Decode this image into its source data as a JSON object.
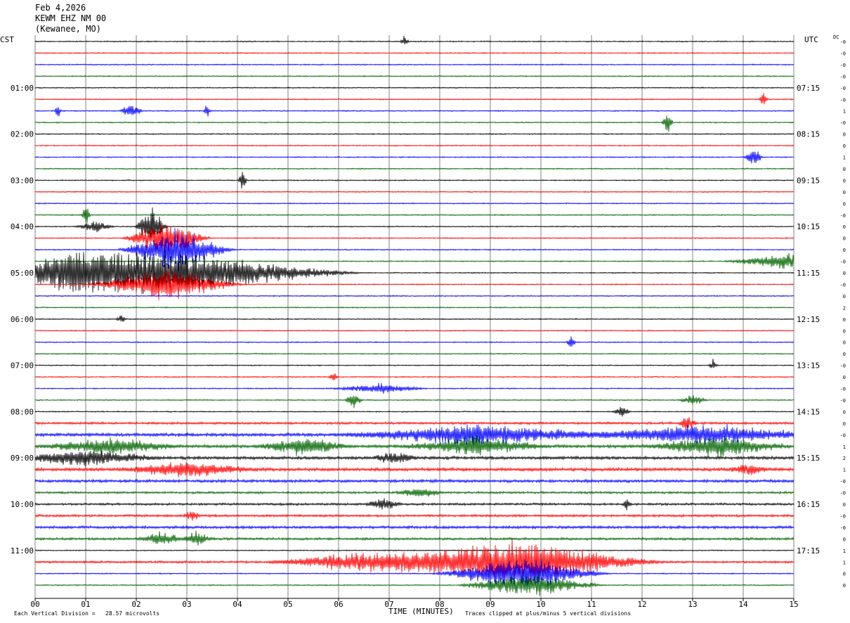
{
  "header": {
    "date": "Feb 4,2026",
    "station": "KEWM EHZ NM 00",
    "location": "(Kewanee, MO)"
  },
  "left_timezone": "CST",
  "right_timezone": "UTC",
  "dc_label": "DC",
  "footer": {
    "scale": "Each Vertical Division =   28.57 microvolts",
    "clip_note": "Traces clipped at plus/minus 5 vertical divisions",
    "x_title": "TIME (MINUTES)"
  },
  "colors": {
    "trace_cycle": [
      "#000000",
      "#ff0000",
      "#0000ff",
      "#006400"
    ],
    "grid": "#808080"
  },
  "chart_data": {
    "type": "line",
    "subtype": "helicorder",
    "xlabel": "TIME (MINUTES)",
    "xlim": [
      0,
      15
    ],
    "x_ticks": [
      "00",
      "01",
      "02",
      "03",
      "04",
      "05",
      "06",
      "07",
      "08",
      "09",
      "10",
      "11",
      "12",
      "13",
      "14",
      "15"
    ],
    "traces_per_hour": 4,
    "trace_count": 48,
    "left_hour_labels": [
      "01:00",
      "02:00",
      "03:00",
      "04:00",
      "05:00",
      "06:00",
      "07:00",
      "08:00",
      "09:00",
      "10:00",
      "11:00"
    ],
    "right_hour_labels": [
      "07:15",
      "08:15",
      "09:15",
      "10:15",
      "11:15",
      "12:15",
      "13:15",
      "14:15",
      "15:15",
      "16:15",
      "17:15"
    ],
    "dc_offsets": [
      "-0",
      "-0",
      "-0",
      "-0",
      "-0",
      "-0",
      "1",
      "-0",
      "0",
      "0",
      "1",
      "0",
      "0",
      "0",
      "0",
      "-0",
      "0",
      "0",
      "0",
      "-0",
      "0",
      "-0",
      "0",
      "2",
      "0",
      "0",
      "0",
      "0",
      "-0",
      "0",
      "-0",
      "-0",
      "0",
      "0",
      "-0",
      "1",
      "2",
      "1",
      "-0",
      "-0",
      "0",
      "-0",
      "-0",
      "0",
      "1",
      "1",
      "0",
      "0"
    ],
    "events": [
      {
        "trace": 0,
        "minute": 7.3,
        "amp": 1.2,
        "width": 0.1
      },
      {
        "trace": 6,
        "minute": 0.45,
        "amp": 1.5,
        "width": 0.08
      },
      {
        "trace": 6,
        "minute": 1.9,
        "amp": 1.6,
        "width": 0.25
      },
      {
        "trace": 6,
        "minute": 3.4,
        "amp": 1.5,
        "width": 0.08
      },
      {
        "trace": 5,
        "minute": 14.4,
        "amp": 1.6,
        "width": 0.1
      },
      {
        "trace": 7,
        "minute": 12.5,
        "amp": 3.5,
        "width": 0.12
      },
      {
        "trace": 10,
        "minute": 14.2,
        "amp": 2.2,
        "width": 0.2
      },
      {
        "trace": 12,
        "minute": 4.1,
        "amp": 2.2,
        "width": 0.1
      },
      {
        "trace": 15,
        "minute": 1.0,
        "amp": 2.2,
        "width": 0.1
      },
      {
        "trace": 16,
        "minute": 1.2,
        "amp": 1.2,
        "width": 0.4
      },
      {
        "trace": 16,
        "minute": 2.3,
        "amp": 4.5,
        "width": 0.35
      },
      {
        "trace": 17,
        "minute": 2.6,
        "amp": 4.0,
        "width": 0.9
      },
      {
        "trace": 18,
        "minute": 2.8,
        "amp": 4.5,
        "width": 1.2
      },
      {
        "trace": 19,
        "minute": 14.8,
        "amp": 1.6,
        "width": 1.2
      },
      {
        "trace": 20,
        "minute": 2.5,
        "amp": 4.5,
        "width": 4.0
      },
      {
        "trace": 20,
        "minute": 0.8,
        "amp": 2.5,
        "width": 1.2
      },
      {
        "trace": 21,
        "minute": 2.6,
        "amp": 3.5,
        "width": 1.6
      },
      {
        "trace": 24,
        "minute": 1.7,
        "amp": 1.2,
        "width": 0.1
      },
      {
        "trace": 26,
        "minute": 10.6,
        "amp": 1.6,
        "width": 0.1
      },
      {
        "trace": 28,
        "minute": 13.4,
        "amp": 1.2,
        "width": 0.1
      },
      {
        "trace": 29,
        "minute": 5.9,
        "amp": 1.2,
        "width": 0.1
      },
      {
        "trace": 30,
        "minute": 6.8,
        "amp": 1.0,
        "width": 1.0
      },
      {
        "trace": 31,
        "minute": 6.3,
        "amp": 1.8,
        "width": 0.2
      },
      {
        "trace": 31,
        "minute": 13.0,
        "amp": 1.2,
        "width": 0.3
      },
      {
        "trace": 32,
        "minute": 11.6,
        "amp": 1.2,
        "width": 0.2
      },
      {
        "trace": 33,
        "minute": 12.9,
        "amp": 1.5,
        "width": 0.2
      },
      {
        "trace": 34,
        "minute": 8.8,
        "amp": 2.0,
        "width": 3.0
      },
      {
        "trace": 34,
        "minute": 13.2,
        "amp": 2.0,
        "width": 2.5
      },
      {
        "trace": 35,
        "minute": 1.5,
        "amp": 1.6,
        "width": 1.5
      },
      {
        "trace": 35,
        "minute": 5.3,
        "amp": 1.8,
        "width": 1.0
      },
      {
        "trace": 35,
        "minute": 8.7,
        "amp": 2.0,
        "width": 1.5
      },
      {
        "trace": 35,
        "minute": 13.5,
        "amp": 2.0,
        "width": 1.5
      },
      {
        "trace": 36,
        "minute": 1.0,
        "amp": 1.6,
        "width": 1.6
      },
      {
        "trace": 36,
        "minute": 7.1,
        "amp": 1.2,
        "width": 0.5
      },
      {
        "trace": 37,
        "minute": 3.0,
        "amp": 1.5,
        "width": 1.5
      },
      {
        "trace": 37,
        "minute": 14.1,
        "amp": 1.2,
        "width": 0.4
      },
      {
        "trace": 39,
        "minute": 7.6,
        "amp": 1.2,
        "width": 0.5
      },
      {
        "trace": 40,
        "minute": 6.9,
        "amp": 1.2,
        "width": 0.4
      },
      {
        "trace": 40,
        "minute": 11.7,
        "amp": 1.5,
        "width": 0.1
      },
      {
        "trace": 41,
        "minute": 3.1,
        "amp": 1.2,
        "width": 0.2
      },
      {
        "trace": 43,
        "minute": 2.5,
        "amp": 1.4,
        "width": 0.5
      },
      {
        "trace": 43,
        "minute": 3.2,
        "amp": 1.6,
        "width": 0.3
      },
      {
        "trace": 45,
        "minute": 9.5,
        "amp": 4.5,
        "width": 3.0
      },
      {
        "trace": 45,
        "minute": 6.5,
        "amp": 2.0,
        "width": 2.0
      },
      {
        "trace": 46,
        "minute": 9.6,
        "amp": 3.5,
        "width": 1.8
      },
      {
        "trace": 47,
        "minute": 9.8,
        "amp": 2.5,
        "width": 1.5
      }
    ],
    "noisy_traces": [
      {
        "trace": 33,
        "level": 1.4
      },
      {
        "trace": 34,
        "level": 1.9
      },
      {
        "trace": 35,
        "level": 1.9
      },
      {
        "trace": 36,
        "level": 1.8
      },
      {
        "trace": 37,
        "level": 1.9
      },
      {
        "trace": 38,
        "level": 1.7
      },
      {
        "trace": 39,
        "level": 1.3
      },
      {
        "trace": 40,
        "level": 1.3
      },
      {
        "trace": 41,
        "level": 1.4
      },
      {
        "trace": 42,
        "level": 1.6
      },
      {
        "trace": 43,
        "level": 1.4
      },
      {
        "trace": 45,
        "level": 1.3
      }
    ]
  }
}
